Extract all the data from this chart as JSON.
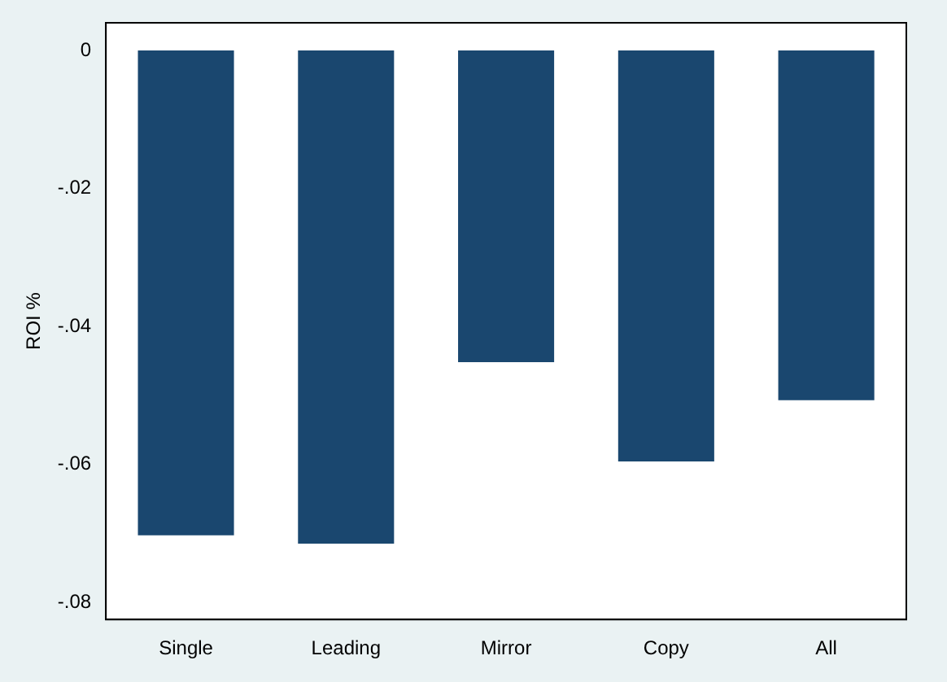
{
  "chart_data": {
    "type": "bar",
    "ylabel": "ROI %",
    "categories": [
      "Single",
      "Leading",
      "Mirror",
      "Copy",
      "All"
    ],
    "values": [
      -0.0703,
      -0.0715,
      -0.0452,
      -0.0596,
      -0.0507
    ],
    "color": "#1a476f",
    "ylim": [
      -0.0825,
      0.004
    ],
    "yticks": [
      {
        "value": -0.08,
        "label": "-.08"
      },
      {
        "value": -0.06,
        "label": "-.06"
      },
      {
        "value": -0.04,
        "label": "-.04"
      },
      {
        "value": -0.02,
        "label": "-.02"
      },
      0
    ],
    "grid": false,
    "legend": false
  }
}
